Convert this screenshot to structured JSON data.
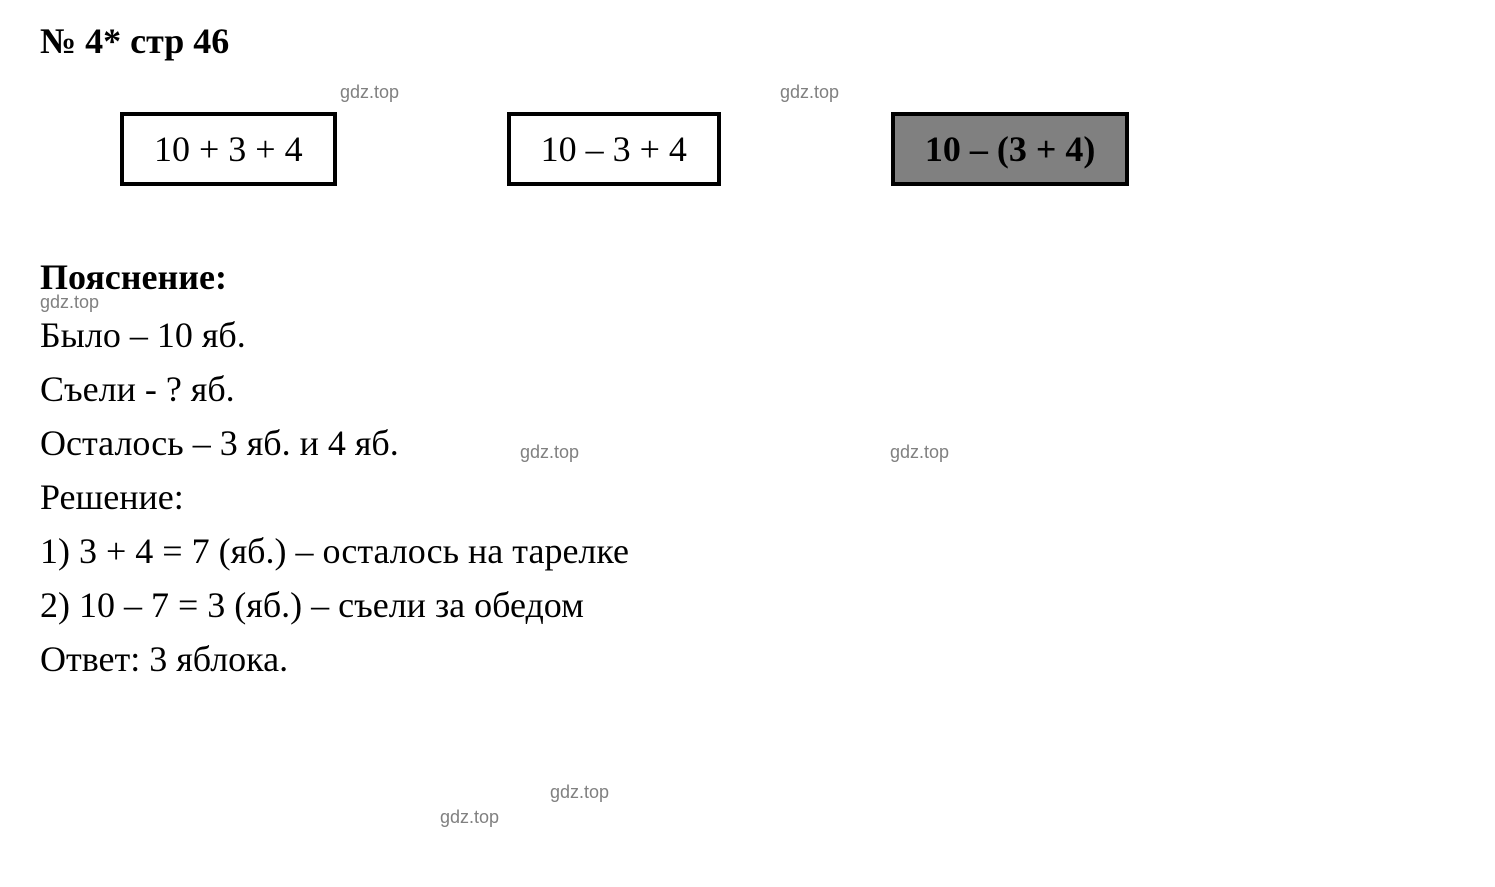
{
  "header": "№ 4* стр 46",
  "expressions": {
    "box1": "10 + 3 + 4",
    "box2": "10 – 3 + 4",
    "box3": "10 – (3 + 4)"
  },
  "watermarks": {
    "wm1": "gdz.top",
    "wm2": "gdz.top",
    "wm3": "gdz.top",
    "wm4": "gdz.top",
    "wm5": "gdz.top",
    "wm6": "gdz.top",
    "wm7": "gdz.top"
  },
  "explanation": {
    "title": "Пояснение:",
    "line1": "Было – 10 яб.",
    "line2": "Съели - ? яб.",
    "line3": "Осталось – 3 яб. и 4 яб.",
    "line4": "Решение:",
    "line5": "1) 3 + 4 = 7 (яб.) – осталось на тарелке",
    "line6": "2) 10 – 7 = 3 (яб.) – съели за обедом",
    "line7": "Ответ: 3 яблока."
  },
  "styling": {
    "background_color": "#ffffff",
    "text_color": "#000000",
    "watermark_color": "#808080",
    "filled_box_bg": "#808080",
    "border_color": "#000000",
    "header_fontsize": 36,
    "body_fontsize": 36,
    "watermark_fontsize": 18,
    "font_family": "Times New Roman",
    "border_width": 4
  }
}
